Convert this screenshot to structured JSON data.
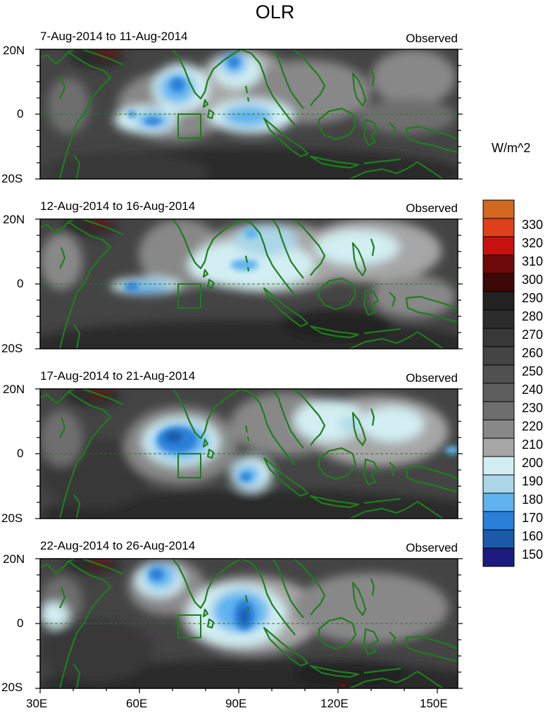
{
  "title": "OLR",
  "units": "W/m^2",
  "panels": [
    {
      "period": "7-Aug-2014 to 11-Aug-2014",
      "source": "Observed"
    },
    {
      "period": "12-Aug-2014 to 16-Aug-2014",
      "source": "Observed"
    },
    {
      "period": "17-Aug-2014 to 21-Aug-2014",
      "source": "Observed"
    },
    {
      "period": "22-Aug-2014 to 26-Aug-2014",
      "source": "Observed"
    }
  ],
  "lat_labels": [
    "20N",
    "0",
    "20S"
  ],
  "lon_labels": [
    "30E",
    "60E",
    "90E",
    "120E",
    "150E"
  ],
  "colorbar": {
    "labels": [
      "330",
      "320",
      "310",
      "300",
      "290",
      "280",
      "270",
      "260",
      "250",
      "240",
      "230",
      "220",
      "210",
      "200",
      "190",
      "180",
      "170",
      "160",
      "150"
    ],
    "colors": [
      "#d2691e",
      "#e0401a",
      "#c81010",
      "#6e0a0a",
      "#3c0808",
      "#222222",
      "#2c2c2c",
      "#383838",
      "#444444",
      "#505050",
      "#5e5e5e",
      "#6e6e6e",
      "#888888",
      "#a6a6a6",
      "#d2eef2",
      "#aad6e8",
      "#5fb3ee",
      "#2a7fd8",
      "#1a5aa8",
      "#1c1c80"
    ]
  },
  "colors": {
    "coastline": "#1e7d1e"
  }
}
